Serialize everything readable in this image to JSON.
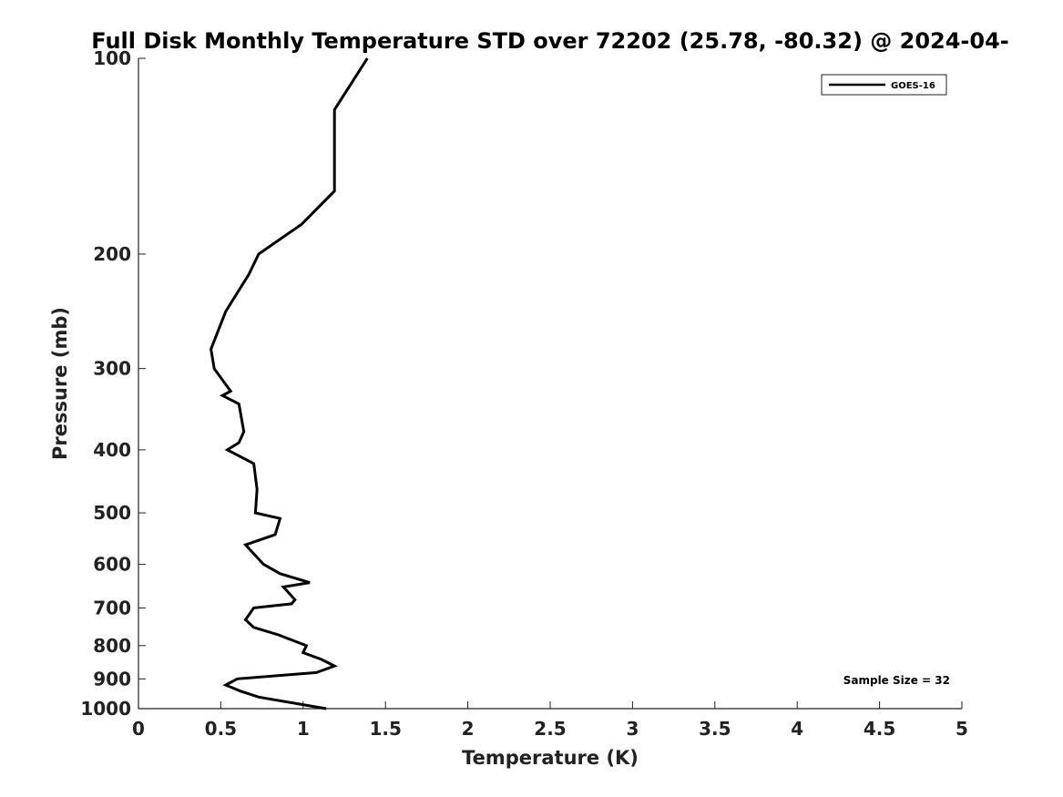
{
  "chart_data": {
    "type": "line",
    "title": "Full Disk Monthly Temperature STD over 72202 (25.78, -80.32) @ 2024-04-",
    "xlabel": "Temperature (K)",
    "ylabel": "Pressure (mb)",
    "xlim": [
      0,
      5
    ],
    "ylim": [
      100,
      1000
    ],
    "yscale": "log",
    "y_inverted": true,
    "grid": false,
    "legend_position": "top-right",
    "x_ticks": [
      "0",
      "0.5",
      "1",
      "1.5",
      "2",
      "2.5",
      "3",
      "3.5",
      "4",
      "4.5",
      "5"
    ],
    "y_ticks": [
      "100",
      "200",
      "300",
      "400",
      "500",
      "600",
      "700",
      "800",
      "900",
      "1000"
    ],
    "annotation": "Sample Size = 32",
    "series": [
      {
        "name": "GOES-16",
        "color": "#000000",
        "x": [
          1.39,
          1.19,
          1.19,
          0.99,
          0.73,
          0.67,
          0.53,
          0.44,
          0.46,
          0.56,
          0.51,
          0.61,
          0.64,
          0.61,
          0.54,
          0.7,
          0.72,
          0.71,
          0.86,
          0.83,
          0.65,
          0.76,
          0.86,
          1.04,
          0.88,
          0.95,
          0.93,
          0.7,
          0.65,
          0.7,
          0.85,
          1.02,
          1.0,
          1.11,
          1.19,
          1.08,
          0.6,
          0.53,
          0.62,
          0.73,
          1.14
        ],
        "y": [
          100,
          120,
          160,
          180,
          200,
          215,
          245,
          280,
          300,
          325,
          330,
          340,
          375,
          390,
          400,
          420,
          460,
          500,
          510,
          540,
          560,
          600,
          620,
          640,
          650,
          680,
          690,
          700,
          730,
          750,
          770,
          800,
          820,
          840,
          860,
          880,
          900,
          920,
          940,
          960,
          1000
        ]
      }
    ]
  }
}
